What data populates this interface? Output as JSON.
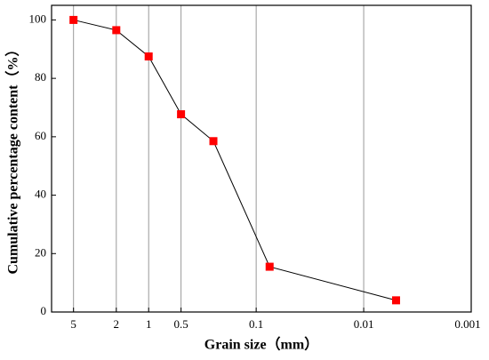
{
  "chart_data": {
    "type": "line",
    "x_label": "Grain size（mm）",
    "y_label": "Cumulative percentage content（%）",
    "x": [
      5,
      2,
      1,
      0.5,
      0.25,
      0.075,
      0.005
    ],
    "series": [
      {
        "color": "#ff0000",
        "values": [
          100,
          96.5,
          87.5,
          67.7,
          58.5,
          15.5,
          4
        ]
      }
    ],
    "xscale": "log",
    "xlim": [
      8,
      0.001
    ],
    "xticks": [
      5,
      2,
      1,
      0.5,
      0.1,
      0.01,
      0.001
    ],
    "ylim": [
      0,
      105
    ],
    "yticks": [
      0,
      20,
      40,
      60,
      80,
      100
    ],
    "grid": "x"
  }
}
